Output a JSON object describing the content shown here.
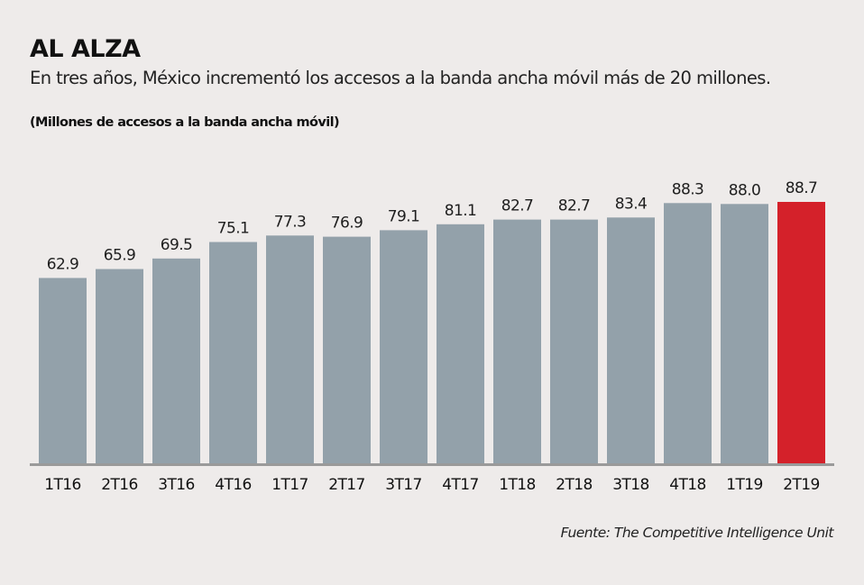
{
  "header": {
    "title": "AL ALZA",
    "subtitle": "En tres años, México incrementó los accesos a la banda ancha móvil más de 20 millones.",
    "unit_label": "(Millones de accesos a la banda ancha móvil)"
  },
  "footer": {
    "source": "Fuente: The Competitive Intelligence Unit"
  },
  "colors": {
    "background": "#eeebea",
    "bar_default": "#93a1aa",
    "bar_highlight": "#d4212a",
    "axis": "#9a9a9a"
  },
  "chart_data": {
    "type": "bar",
    "title": "AL ALZA",
    "subtitle": "En tres años, México incrementó los accesos a la banda ancha móvil más de 20 millones.",
    "xlabel": "",
    "ylabel": "(Millones de accesos a la banda ancha móvil)",
    "categories": [
      "1T16",
      "2T16",
      "3T16",
      "4T16",
      "1T17",
      "2T17",
      "3T17",
      "4T17",
      "1T18",
      "2T18",
      "3T18",
      "4T18",
      "1T19",
      "2T19"
    ],
    "values": [
      62.9,
      65.9,
      69.5,
      75.1,
      77.3,
      76.9,
      79.1,
      81.1,
      82.7,
      82.7,
      83.4,
      88.3,
      88.0,
      88.7
    ],
    "value_labels": [
      "62.9",
      "65.9",
      "69.5",
      "75.1",
      "77.3",
      "76.9",
      "79.1",
      "81.1",
      "82.7",
      "82.7",
      "83.4",
      "88.3",
      "88.0",
      "88.7"
    ],
    "highlight_index": 13,
    "ylim": [
      0,
      88.7
    ],
    "grid": false,
    "legend": "none",
    "source": "Fuente: The Competitive Intelligence Unit"
  }
}
